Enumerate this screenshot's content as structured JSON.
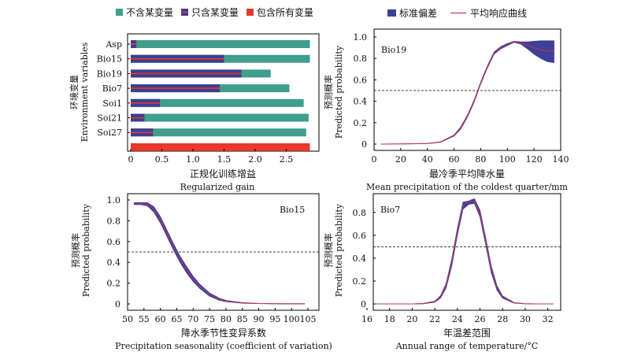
{
  "colors": {
    "teal": "#3f9e8c",
    "navy": "#3b3f91",
    "red": "#e8382d",
    "line": "#c0374f",
    "band": "#3e3f99"
  },
  "chart_data": [
    {
      "type": "bar",
      "legend": [
        {
          "label": "不含某变量",
          "color": "#3f9e8c",
          "marker": "square"
        },
        {
          "label": "只含某变量",
          "color": "#3b3f91",
          "marker": "square-striped"
        },
        {
          "label": "包含所有变量",
          "color": "#e8382d",
          "marker": "square"
        }
      ],
      "categories": [
        "Asp",
        "Bio15",
        "Bio19",
        "Bio7",
        "Soi1",
        "Soi21",
        "Soi27"
      ],
      "series": [
        {
          "name": "不含某变量",
          "values": [
            2.88,
            2.88,
            2.25,
            2.55,
            2.78,
            2.86,
            2.82
          ]
        },
        {
          "name": "只含某变量",
          "values": [
            0.09,
            1.5,
            1.78,
            1.43,
            0.47,
            0.22,
            0.36
          ]
        }
      ],
      "all_variables": {
        "name": "包含所有变量",
        "value": 2.88
      },
      "xlabel_cn": "正规化训练增益",
      "xlabel_en": "Regularized gain",
      "ylabel_cn": "环境变量",
      "ylabel_en": "Environment variables",
      "xlim": [
        0,
        3.0
      ],
      "xticks": [
        "0",
        "0.5",
        "1.0",
        "1.5",
        "2.0",
        "2.5"
      ],
      "grid": false
    },
    {
      "type": "line",
      "panel_label": "Bio19",
      "legend": [
        {
          "label": "标准偏差",
          "color": "#3e3f99",
          "marker": "band"
        },
        {
          "label": "平均响应曲线",
          "color": "#c0374f",
          "marker": "line"
        }
      ],
      "x": [
        5,
        40,
        50,
        60,
        65,
        70,
        75,
        80,
        85,
        90,
        95,
        100,
        105,
        110,
        115,
        120,
        125,
        130,
        135
      ],
      "y": [
        0.0,
        0.005,
        0.02,
        0.08,
        0.15,
        0.26,
        0.4,
        0.57,
        0.72,
        0.85,
        0.9,
        0.93,
        0.955,
        0.945,
        0.925,
        0.9,
        0.88,
        0.87,
        0.87
      ],
      "y_upper": [
        0.0,
        0.006,
        0.022,
        0.085,
        0.16,
        0.27,
        0.41,
        0.58,
        0.73,
        0.86,
        0.91,
        0.94,
        0.96,
        0.955,
        0.955,
        0.96,
        0.965,
        0.965,
        0.965
      ],
      "y_lower": [
        0.0,
        0.004,
        0.018,
        0.075,
        0.14,
        0.25,
        0.39,
        0.56,
        0.71,
        0.84,
        0.89,
        0.92,
        0.95,
        0.935,
        0.89,
        0.84,
        0.8,
        0.77,
        0.76
      ],
      "reference_line": 0.5,
      "xlim": [
        0,
        140
      ],
      "ylim": [
        0,
        1.0
      ],
      "xticks": [
        "0",
        "20",
        "40",
        "60",
        "80",
        "100",
        "120",
        "140"
      ],
      "yticks": [
        "0",
        "0.2",
        "0.4",
        "0.6",
        "0.8",
        "1.0"
      ],
      "xlabel_cn": "最冷季平均降水量",
      "xlabel_en": "Mean precipitation of the coldest quarter/mm",
      "ylabel_cn": "预测概率",
      "ylabel_en": "Predicted probability"
    },
    {
      "type": "line",
      "panel_label": "Bio15",
      "x": [
        52,
        54,
        56,
        58,
        60,
        62,
        64,
        66,
        68,
        70,
        72,
        75,
        78,
        80,
        85,
        90,
        95,
        100,
        104
      ],
      "y": [
        0.965,
        0.965,
        0.96,
        0.91,
        0.81,
        0.68,
        0.55,
        0.43,
        0.33,
        0.24,
        0.17,
        0.09,
        0.045,
        0.028,
        0.01,
        0.004,
        0.002,
        0.001,
        0.001
      ],
      "y_upper": [
        0.975,
        0.975,
        0.975,
        0.935,
        0.84,
        0.71,
        0.58,
        0.46,
        0.36,
        0.265,
        0.19,
        0.105,
        0.055,
        0.034,
        0.013,
        0.005,
        0.003,
        0.002,
        0.002
      ],
      "y_lower": [
        0.955,
        0.955,
        0.945,
        0.885,
        0.78,
        0.65,
        0.52,
        0.4,
        0.3,
        0.215,
        0.15,
        0.075,
        0.035,
        0.022,
        0.007,
        0.003,
        0.001,
        0.0,
        0.0
      ],
      "reference_line": 0.5,
      "xlim": [
        50,
        105
      ],
      "ylim": [
        0,
        1.0
      ],
      "xticks": [
        "50",
        "55",
        "60",
        "65",
        "70",
        "75",
        "80",
        "85",
        "90",
        "95",
        "100",
        "105"
      ],
      "yticks": [
        "0",
        "0.2",
        "0.4",
        "0.6",
        "0.8",
        "1.0"
      ],
      "xlabel_cn": "降水季节性变异系数",
      "xlabel_en": "Precipitation seasonality (coefficient of variation)",
      "ylabel_cn": "预测概率",
      "ylabel_en": "Predicted probability"
    },
    {
      "type": "line",
      "panel_label": "Bio7",
      "x": [
        16.5,
        20,
        21,
        22,
        22.5,
        23,
        23.5,
        24,
        24.5,
        25,
        25.5,
        26,
        26.5,
        27,
        27.5,
        28,
        29,
        30,
        31,
        32.5
      ],
      "y": [
        0.0,
        0.0,
        0.003,
        0.02,
        0.06,
        0.16,
        0.36,
        0.63,
        0.86,
        0.89,
        0.9,
        0.79,
        0.55,
        0.3,
        0.14,
        0.06,
        0.01,
        0.002,
        0.0,
        0.0
      ],
      "y_upper": [
        0.0,
        0.0,
        0.005,
        0.025,
        0.07,
        0.18,
        0.39,
        0.66,
        0.89,
        0.9,
        0.92,
        0.82,
        0.58,
        0.33,
        0.16,
        0.07,
        0.013,
        0.003,
        0.001,
        0.0
      ],
      "y_lower": [
        0.0,
        0.0,
        0.001,
        0.015,
        0.05,
        0.14,
        0.33,
        0.6,
        0.83,
        0.87,
        0.88,
        0.76,
        0.52,
        0.27,
        0.12,
        0.05,
        0.007,
        0.001,
        0.0,
        0.0
      ],
      "reference_line": 0.5,
      "xlim": [
        16,
        33
      ],
      "ylim": [
        0,
        0.95
      ],
      "xticks": [
        "16",
        "18",
        "20",
        "22",
        "24",
        "26",
        "28",
        "30",
        "32"
      ],
      "yticks": [
        "0",
        "0.2",
        "0.4",
        "0.6",
        "0.8"
      ],
      "xlabel_cn": "年温差范围",
      "xlabel_en": "Annual range of temperature/°C",
      "ylabel_cn": "预测概率",
      "ylabel_en": "Predicted probability"
    }
  ]
}
